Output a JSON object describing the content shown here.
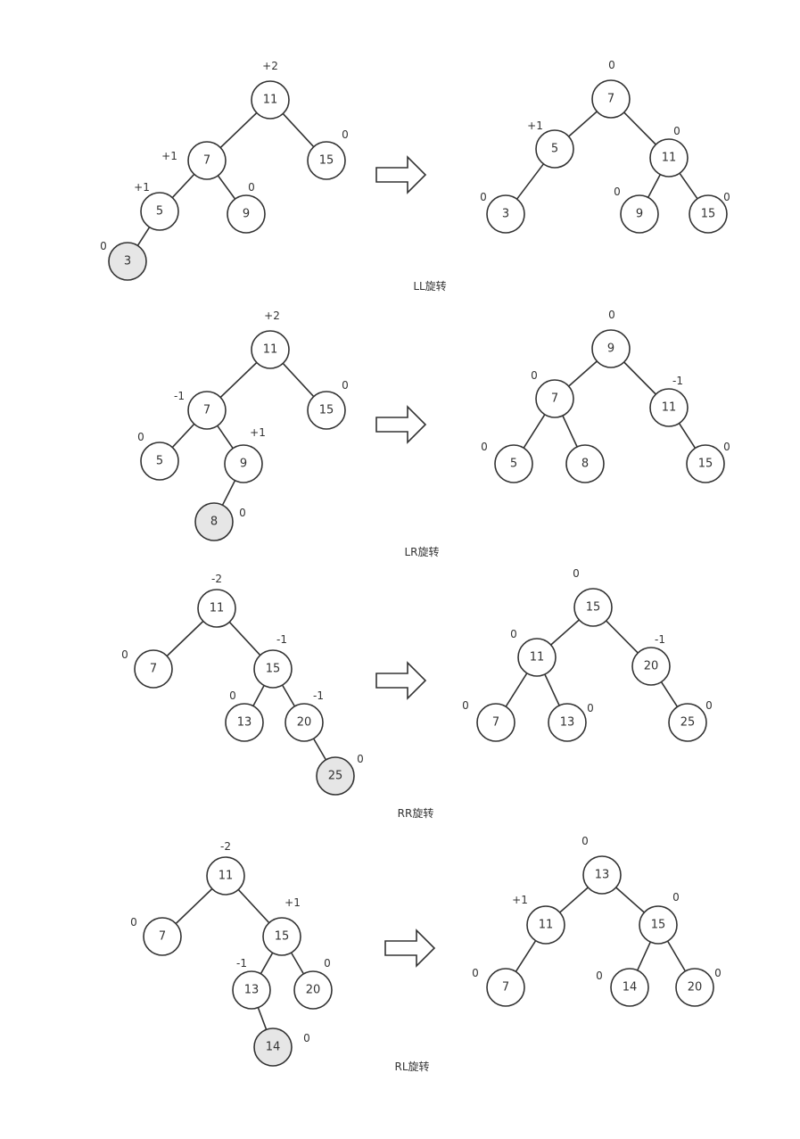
{
  "colors": {
    "node_fill": "#ffffff",
    "inserted_fill": "#e6e6e6",
    "stroke": "#333333"
  },
  "panels": [
    {
      "caption": "LL旋转",
      "before": {
        "nodes": [
          {
            "id": "a",
            "label": "11",
            "balance": "+2"
          },
          {
            "id": "b",
            "label": "7",
            "balance": "+1"
          },
          {
            "id": "c",
            "label": "15",
            "balance": "0"
          },
          {
            "id": "d",
            "label": "5",
            "balance": "+1"
          },
          {
            "id": "e",
            "label": "9",
            "balance": "0"
          },
          {
            "id": "f",
            "label": "3",
            "balance": "0",
            "inserted": true
          }
        ],
        "edges": [
          [
            "a",
            "b"
          ],
          [
            "a",
            "c"
          ],
          [
            "b",
            "d"
          ],
          [
            "b",
            "e"
          ],
          [
            "d",
            "f"
          ]
        ]
      },
      "after": {
        "nodes": [
          {
            "id": "a",
            "label": "7",
            "balance": "0"
          },
          {
            "id": "b",
            "label": "5",
            "balance": "+1"
          },
          {
            "id": "c",
            "label": "11",
            "balance": "0"
          },
          {
            "id": "d",
            "label": "3",
            "balance": "0"
          },
          {
            "id": "e",
            "label": "9",
            "balance": "0"
          },
          {
            "id": "f",
            "label": "15",
            "balance": "0"
          }
        ],
        "edges": [
          [
            "a",
            "b"
          ],
          [
            "a",
            "c"
          ],
          [
            "b",
            "d"
          ],
          [
            "c",
            "e"
          ],
          [
            "c",
            "f"
          ]
        ]
      }
    },
    {
      "caption": "LR旋转",
      "before": {
        "nodes": [
          {
            "id": "a",
            "label": "11",
            "balance": "+2"
          },
          {
            "id": "b",
            "label": "7",
            "balance": "-1"
          },
          {
            "id": "c",
            "label": "15",
            "balance": "0"
          },
          {
            "id": "d",
            "label": "5",
            "balance": "0"
          },
          {
            "id": "e",
            "label": "9",
            "balance": "+1"
          },
          {
            "id": "f",
            "label": "8",
            "balance": "0",
            "inserted": true
          }
        ],
        "edges": [
          [
            "a",
            "b"
          ],
          [
            "a",
            "c"
          ],
          [
            "b",
            "d"
          ],
          [
            "b",
            "e"
          ],
          [
            "e",
            "f"
          ]
        ]
      },
      "after": {
        "nodes": [
          {
            "id": "a",
            "label": "9",
            "balance": "0"
          },
          {
            "id": "b",
            "label": "7",
            "balance": "0"
          },
          {
            "id": "c",
            "label": "11",
            "balance": "-1"
          },
          {
            "id": "d",
            "label": "5",
            "balance": "0"
          },
          {
            "id": "e",
            "label": "8",
            "balance": ""
          },
          {
            "id": "f",
            "label": "15",
            "balance": "0"
          }
        ],
        "edges": [
          [
            "a",
            "b"
          ],
          [
            "a",
            "c"
          ],
          [
            "b",
            "d"
          ],
          [
            "b",
            "e"
          ],
          [
            "c",
            "f"
          ]
        ]
      }
    },
    {
      "caption": "RR旋转",
      "before": {
        "nodes": [
          {
            "id": "a",
            "label": "11",
            "balance": "-2"
          },
          {
            "id": "b",
            "label": "7",
            "balance": "0"
          },
          {
            "id": "c",
            "label": "15",
            "balance": "-1"
          },
          {
            "id": "d",
            "label": "13",
            "balance": "0"
          },
          {
            "id": "e",
            "label": "20",
            "balance": "-1"
          },
          {
            "id": "f",
            "label": "25",
            "balance": "0",
            "inserted": true
          }
        ],
        "edges": [
          [
            "a",
            "b"
          ],
          [
            "a",
            "c"
          ],
          [
            "c",
            "d"
          ],
          [
            "c",
            "e"
          ],
          [
            "e",
            "f"
          ]
        ]
      },
      "after": {
        "nodes": [
          {
            "id": "a",
            "label": "15",
            "balance": "0"
          },
          {
            "id": "b",
            "label": "11",
            "balance": "0"
          },
          {
            "id": "c",
            "label": "20",
            "balance": "-1"
          },
          {
            "id": "d",
            "label": "7",
            "balance": "0"
          },
          {
            "id": "e",
            "label": "13",
            "balance": "0"
          },
          {
            "id": "f",
            "label": "25",
            "balance": "0"
          }
        ],
        "edges": [
          [
            "a",
            "b"
          ],
          [
            "a",
            "c"
          ],
          [
            "b",
            "d"
          ],
          [
            "b",
            "e"
          ],
          [
            "c",
            "f"
          ]
        ]
      }
    },
    {
      "caption": "RL旋转",
      "before": {
        "nodes": [
          {
            "id": "a",
            "label": "11",
            "balance": "-2"
          },
          {
            "id": "b",
            "label": "7",
            "balance": "0"
          },
          {
            "id": "c",
            "label": "15",
            "balance": "+1"
          },
          {
            "id": "d",
            "label": "13",
            "balance": "-1"
          },
          {
            "id": "e",
            "label": "20",
            "balance": "0"
          },
          {
            "id": "f",
            "label": "14",
            "balance": "0",
            "inserted": true
          }
        ],
        "edges": [
          [
            "a",
            "b"
          ],
          [
            "a",
            "c"
          ],
          [
            "c",
            "d"
          ],
          [
            "c",
            "e"
          ],
          [
            "d",
            "f"
          ]
        ]
      },
      "after": {
        "nodes": [
          {
            "id": "a",
            "label": "13",
            "balance": "0"
          },
          {
            "id": "b",
            "label": "11",
            "balance": "+1"
          },
          {
            "id": "c",
            "label": "15",
            "balance": "0"
          },
          {
            "id": "d",
            "label": "7",
            "balance": "0"
          },
          {
            "id": "e",
            "label": "14",
            "balance": "0"
          },
          {
            "id": "f",
            "label": "20",
            "balance": "0"
          }
        ],
        "edges": [
          [
            "a",
            "b"
          ],
          [
            "a",
            "c"
          ],
          [
            "b",
            "d"
          ],
          [
            "c",
            "e"
          ],
          [
            "c",
            "f"
          ]
        ]
      }
    }
  ]
}
